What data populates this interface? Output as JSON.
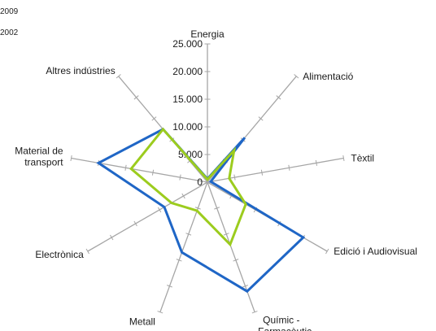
{
  "chart_data": {
    "type": "radar",
    "title": "",
    "categories": [
      "Energia",
      "Alimentació",
      "Tèxtil",
      "Edició i Audiovisual",
      "Químic - Farmacèutic",
      "Metall",
      "Electrònica",
      "Material de transport",
      "Altres indústries"
    ],
    "radial_ticks": [
      "0",
      "5.000",
      "10.000",
      "15.000",
      "20.000",
      "25.000"
    ],
    "range": [
      0,
      25000
    ],
    "series": [
      {
        "name": "2009",
        "color": "#1f66c6",
        "values": [
          600,
          10500,
          600,
          20000,
          21000,
          13500,
          9000,
          20000,
          12500
        ]
      },
      {
        "name": "2002",
        "color": "#9ccc1e",
        "values": [
          500,
          7500,
          4000,
          8000,
          12000,
          5500,
          7500,
          14000,
          12500
        ]
      }
    ],
    "legend_placement": "top-left",
    "grid": false
  }
}
